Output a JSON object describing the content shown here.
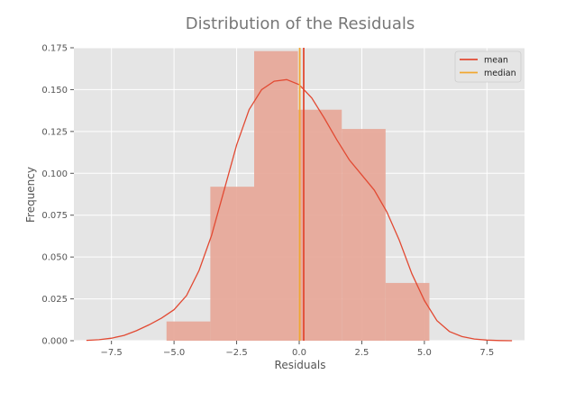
{
  "chart_data": {
    "type": "histogram",
    "title": "Distribution of the Residuals",
    "xlabel": "Residuals",
    "ylabel": "Frequency",
    "xlim": [
      -9.0,
      9.0
    ],
    "ylim": [
      0.0,
      0.175
    ],
    "x_ticks": [
      -7.5,
      -5.0,
      -2.5,
      0.0,
      2.5,
      5.0,
      7.5
    ],
    "x_tick_labels": [
      "−7.5",
      "−5.0",
      "−2.5",
      "0.0",
      "2.5",
      "5.0",
      "7.5"
    ],
    "y_ticks": [
      0.0,
      0.025,
      0.05,
      0.075,
      0.1,
      0.125,
      0.15,
      0.175
    ],
    "y_tick_labels": [
      "0.000",
      "0.025",
      "0.050",
      "0.075",
      "0.100",
      "0.125",
      "0.150",
      "0.175"
    ],
    "grid": true,
    "legend_position": "top-right",
    "bins": [
      {
        "x0": -5.3,
        "x1": -3.55,
        "density": 0.0115
      },
      {
        "x0": -3.55,
        "x1": -1.8,
        "density": 0.092
      },
      {
        "x0": -1.8,
        "x1": -0.05,
        "density": 0.173
      },
      {
        "x0": -0.05,
        "x1": 1.7,
        "density": 0.138
      },
      {
        "x0": 1.7,
        "x1": 3.45,
        "density": 0.1265
      },
      {
        "x0": 3.45,
        "x1": 5.2,
        "density": 0.0345
      }
    ],
    "kde": {
      "x": [
        -8.5,
        -8.0,
        -7.5,
        -7.0,
        -6.5,
        -6.0,
        -5.5,
        -5.0,
        -4.5,
        -4.0,
        -3.5,
        -3.0,
        -2.5,
        -2.0,
        -1.5,
        -1.0,
        -0.5,
        0.0,
        0.5,
        1.0,
        1.5,
        2.0,
        2.5,
        3.0,
        3.5,
        4.0,
        4.5,
        5.0,
        5.5,
        6.0,
        6.5,
        7.0,
        7.5,
        8.0,
        8.5
      ],
      "y": [
        0.0002,
        0.0006,
        0.0015,
        0.0032,
        0.006,
        0.0095,
        0.0135,
        0.0185,
        0.027,
        0.042,
        0.063,
        0.09,
        0.117,
        0.138,
        0.15,
        0.155,
        0.156,
        0.153,
        0.145,
        0.133,
        0.12,
        0.108,
        0.099,
        0.09,
        0.077,
        0.06,
        0.04,
        0.024,
        0.012,
        0.0055,
        0.0025,
        0.001,
        0.0004,
        0.0001,
        0.0
      ]
    },
    "series": [
      {
        "name": "mean",
        "type": "vline",
        "x": 0.18,
        "color": "#e24a33"
      },
      {
        "name": "median",
        "type": "vline",
        "x": 0.02,
        "color": "#f0a830"
      }
    ],
    "colors": {
      "hist_fill": "#e7a596",
      "kde_line": "#e24a33",
      "axes_bg": "#e5e5e5",
      "grid": "#ffffff",
      "text": "#555555",
      "title": "#777777"
    }
  }
}
